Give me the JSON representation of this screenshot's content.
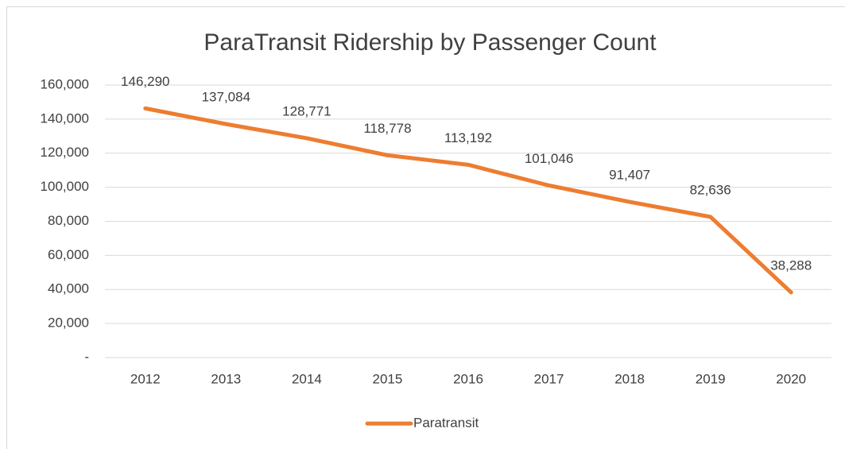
{
  "chart_data": {
    "type": "line",
    "title": "ParaTransit Ridership by Passenger Count",
    "categories": [
      "2012",
      "2013",
      "2014",
      "2015",
      "2016",
      "2017",
      "2018",
      "2019",
      "2020"
    ],
    "series": [
      {
        "name": "Paratransit",
        "color": "#ed7d31",
        "values": [
          146290,
          137084,
          128771,
          118778,
          113192,
          101046,
          91407,
          82636,
          38288
        ],
        "value_labels": [
          "146,290",
          "137,084",
          "128,771",
          "118,778",
          "113,192",
          "101,046",
          "91,407",
          "82,636",
          "38,288"
        ]
      }
    ],
    "ylim": [
      0,
      160000
    ],
    "yticks": [
      {
        "value": 0,
        "label": "-"
      },
      {
        "value": 20000,
        "label": "20,000"
      },
      {
        "value": 40000,
        "label": "40,000"
      },
      {
        "value": 60000,
        "label": "60,000"
      },
      {
        "value": 80000,
        "label": "80,000"
      },
      {
        "value": 100000,
        "label": "100,000"
      },
      {
        "value": 120000,
        "label": "120,000"
      },
      {
        "value": 140000,
        "label": "140,000"
      },
      {
        "value": 160000,
        "label": "160,000"
      }
    ],
    "grid": true,
    "legend": "bottom"
  }
}
